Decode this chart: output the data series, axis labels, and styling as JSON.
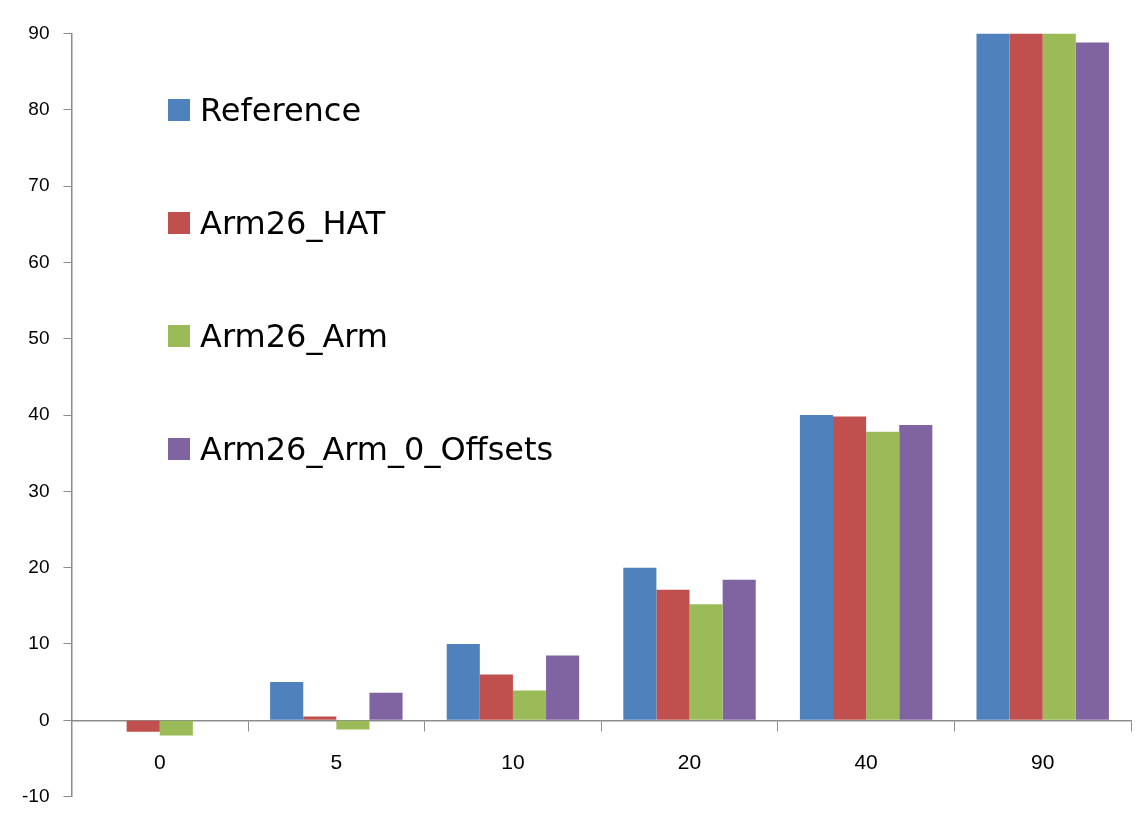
{
  "chart_data": {
    "type": "bar",
    "categories": [
      "0",
      "5",
      "10",
      "20",
      "40",
      "90"
    ],
    "series": [
      {
        "name": "Reference",
        "color": "#4f81bd",
        "values": [
          0,
          5,
          10,
          20,
          40,
          90
        ]
      },
      {
        "name": "Arm26_HAT",
        "color": "#c0504d",
        "values": [
          -1.5,
          0.5,
          6,
          17.1,
          39.8,
          90
        ]
      },
      {
        "name": "Arm26_Arm",
        "color": "#9bbb59",
        "values": [
          -2,
          -1.2,
          3.9,
          15.2,
          37.8,
          90
        ]
      },
      {
        "name": "Arm26_Arm_0_Offsets",
        "color": "#8064a2",
        "values": [
          0,
          3.6,
          8.5,
          18.4,
          38.7,
          88.8
        ]
      }
    ],
    "ylim": [
      -10,
      90
    ],
    "yticks": [
      -10,
      0,
      10,
      20,
      30,
      40,
      50,
      60,
      70,
      80,
      90
    ],
    "grid": false,
    "legend": "top left"
  }
}
